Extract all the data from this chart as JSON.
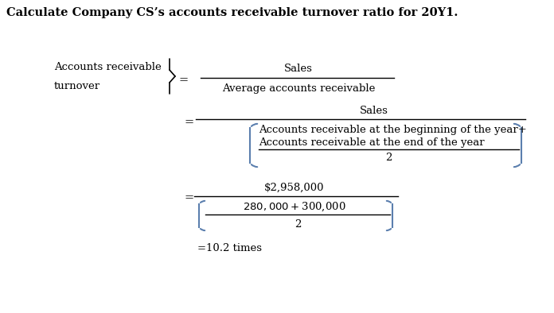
{
  "title": "Calculate Company CS’s accounts receivable turnover ratio for 20Y1.",
  "title_fontsize": 10.5,
  "bg_color": "#ffffff",
  "text_color": "#000000",
  "line_color": "#000000",
  "bracket_color": "#5b7fae",
  "font_family": "DejaVu Serif",
  "label_left_line1": "Accounts receivable",
  "label_left_line2": "turnover",
  "fraction1_num": "Sales",
  "fraction1_den": "Average accounts receivable",
  "fraction2_num": "Sales",
  "fraction2_den_line1": "Accounts receivable at the beginning of the year+",
  "fraction2_den_line2": "Accounts receivable at the end of the year",
  "fraction2_den_denom": "2",
  "fraction3_num": "$2,958,000",
  "fraction3_den_num": "$280,000+$300,000",
  "fraction3_den_denom": "2",
  "result": "=10.2 times"
}
